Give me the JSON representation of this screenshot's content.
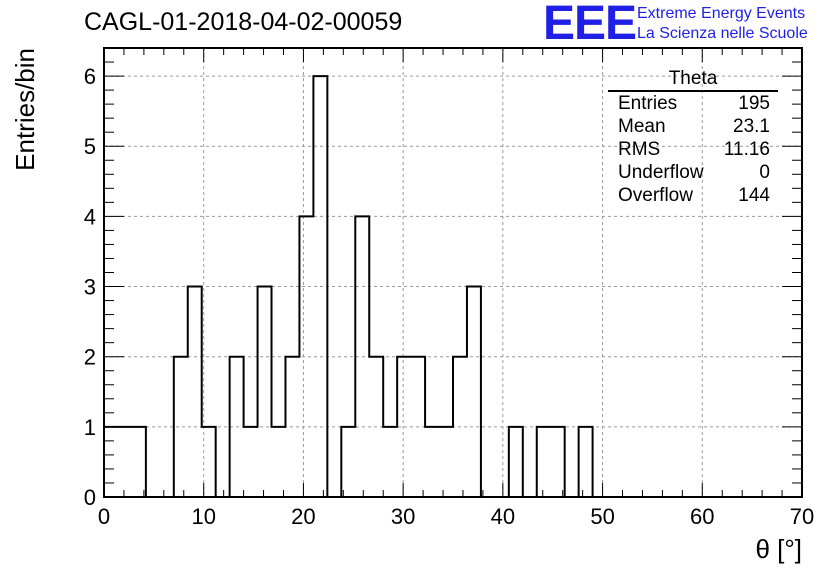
{
  "title": "CAGL-01-2018-04-02-00059",
  "logo": {
    "mark": "EEE",
    "line1": "Extreme Energy Events",
    "line2": "La Scienza nelle Scuole",
    "color": "#1f1fe6"
  },
  "stats_box": {
    "name": "Theta",
    "rows": [
      {
        "label": "Entries",
        "value": "195"
      },
      {
        "label": "Mean",
        "value": "23.1"
      },
      {
        "label": "RMS",
        "value": "11.16"
      },
      {
        "label": "Underflow",
        "value": "0"
      },
      {
        "label": "Overflow",
        "value": "144"
      }
    ]
  },
  "chart_data": {
    "type": "bar",
    "histogram": true,
    "title": "CAGL-01-2018-04-02-00059",
    "xlabel": "θ [°]",
    "ylabel": "Entries/bin",
    "xlim": [
      0,
      70
    ],
    "ylim": [
      0,
      6.4
    ],
    "grid": true,
    "bin_width": 1.4,
    "bin_low_edges": [
      0,
      1.4,
      2.8,
      4.2,
      5.6,
      7.0,
      8.4,
      9.8,
      11.2,
      12.6,
      14.0,
      15.4,
      16.8,
      18.2,
      19.6,
      21.0,
      22.4,
      23.8,
      25.2,
      26.6,
      28.0,
      29.4,
      30.8,
      32.2,
      33.6,
      35.0,
      36.4,
      37.8,
      39.2,
      40.6,
      42.0,
      43.4,
      44.8,
      46.2,
      47.6,
      49.0
    ],
    "values": [
      1,
      1,
      1,
      0,
      0,
      2,
      3,
      1,
      0,
      2,
      1,
      3,
      1,
      2,
      4,
      6,
      0,
      1,
      4,
      2,
      1,
      2,
      2,
      1,
      1,
      2,
      3,
      0,
      0,
      1,
      0,
      1,
      1,
      0,
      1,
      0
    ],
    "x_ticks": [
      "0",
      "10",
      "20",
      "30",
      "40",
      "50",
      "60",
      "70"
    ],
    "y_ticks": [
      "0",
      "1",
      "2",
      "3",
      "4",
      "5",
      "6"
    ]
  }
}
